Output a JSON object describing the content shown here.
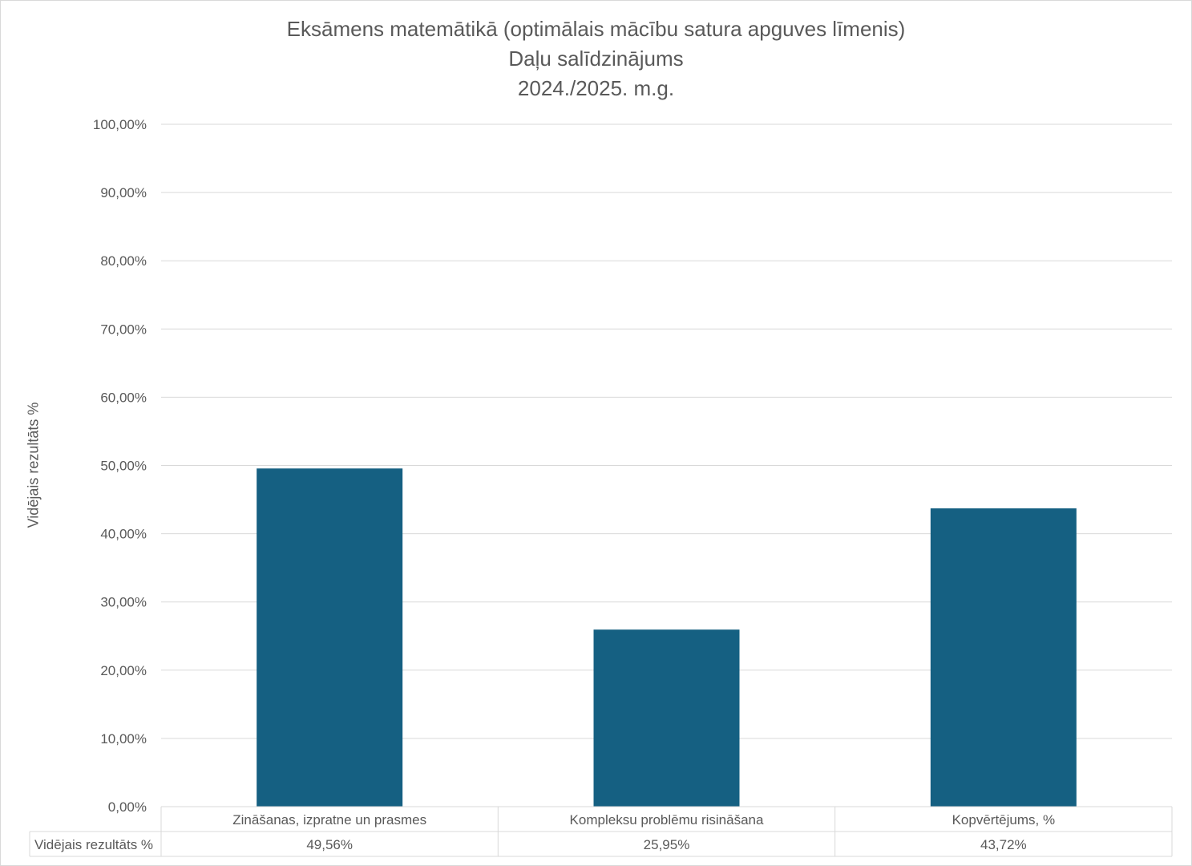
{
  "chart_data": {
    "type": "bar",
    "title": "Eksāmens matemātikā (optimālais mācību satura apguves līmenis)",
    "subtitle": "Daļu salīdzinājums",
    "subtitle2": "2024./2025. m.g.",
    "xlabel": "",
    "ylabel": "Vidējais rezultāts %",
    "ylim": [
      0,
      100
    ],
    "yticks": [
      0,
      10,
      20,
      30,
      40,
      50,
      60,
      70,
      80,
      90,
      100
    ],
    "ytick_labels": [
      "0,00%",
      "10,00%",
      "20,00%",
      "30,00%",
      "40,00%",
      "50,00%",
      "60,00%",
      "70,00%",
      "80,00%",
      "90,00%",
      "100,00%"
    ],
    "grid": true,
    "categories": [
      "Zināšanas, izpratne un prasmes",
      "Kompleksu problēmu risināšana",
      "Kopvērtējums, %"
    ],
    "series": [
      {
        "name": "Vidējais rezultāts %",
        "values": [
          49.56,
          25.95,
          43.72
        ],
        "value_labels": [
          "49,56%",
          "25,95%",
          "43,72%"
        ],
        "color": "#156082"
      }
    ],
    "data_table": true
  },
  "colors": {
    "bar": "#156082",
    "grid": "#d9d9d9",
    "text": "#595959"
  }
}
